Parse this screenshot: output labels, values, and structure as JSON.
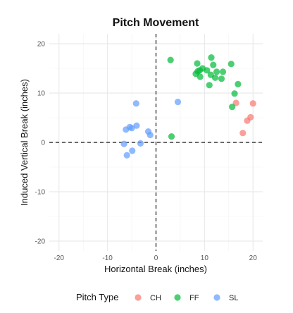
{
  "chart_data": {
    "type": "scatter",
    "title": "Pitch Movement",
    "xlabel": "Horizontal Break (inches)",
    "ylabel": "Induced Vertical Break (inches)",
    "xlim": [
      -22,
      22
    ],
    "ylim": [
      -22,
      22
    ],
    "xticks": [
      -20,
      -10,
      0,
      10,
      20
    ],
    "yticks": [
      -20,
      -10,
      0,
      10,
      20
    ],
    "grid": true,
    "reference_lines": {
      "x": 0,
      "y": 0,
      "style": "dashed"
    },
    "legend": {
      "title": "Pitch Type",
      "position": "bottom"
    },
    "series": [
      {
        "name": "CH",
        "color": "#F8766D",
        "points": [
          [
            16.5,
            8.0
          ],
          [
            20.0,
            7.9
          ],
          [
            19.5,
            5.1
          ],
          [
            18.8,
            4.4
          ],
          [
            17.9,
            1.9
          ]
        ]
      },
      {
        "name": "FF",
        "color": "#00BA38",
        "points": [
          [
            3.0,
            16.7
          ],
          [
            11.4,
            17.2
          ],
          [
            8.5,
            16.0
          ],
          [
            11.8,
            15.7
          ],
          [
            15.5,
            15.9
          ],
          [
            9.6,
            15.0
          ],
          [
            8.6,
            14.4
          ],
          [
            9.0,
            14.6
          ],
          [
            8.2,
            13.9
          ],
          [
            10.5,
            14.6
          ],
          [
            12.5,
            14.3
          ],
          [
            13.8,
            14.3
          ],
          [
            11.3,
            13.7
          ],
          [
            12.2,
            13.1
          ],
          [
            13.5,
            12.9
          ],
          [
            9.1,
            13.3
          ],
          [
            16.9,
            11.8
          ],
          [
            11.0,
            11.6
          ],
          [
            16.2,
            9.9
          ],
          [
            15.7,
            7.2
          ],
          [
            3.2,
            1.2
          ]
        ]
      },
      {
        "name": "SL",
        "color": "#619CFF",
        "points": [
          [
            -4.1,
            7.9
          ],
          [
            4.5,
            8.2
          ],
          [
            -4.0,
            3.4
          ],
          [
            -5.0,
            2.9
          ],
          [
            -5.4,
            3.1
          ],
          [
            -6.2,
            2.6
          ],
          [
            -1.6,
            2.2
          ],
          [
            -1.2,
            1.5
          ],
          [
            -3.2,
            -0.2
          ],
          [
            -6.6,
            -0.3
          ],
          [
            -4.9,
            -1.7
          ],
          [
            -6.0,
            -2.6
          ]
        ]
      }
    ]
  }
}
